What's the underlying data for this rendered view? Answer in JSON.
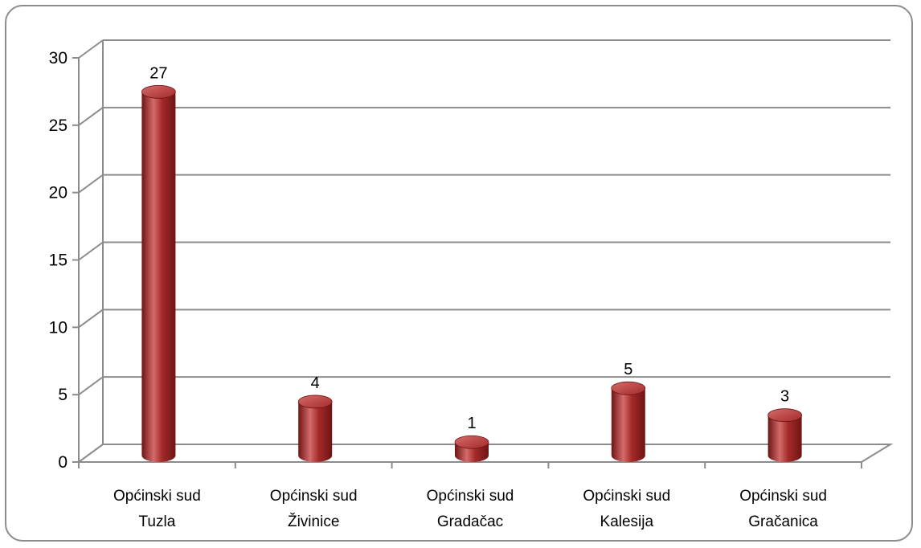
{
  "chart_data": {
    "type": "bar",
    "categories": [
      [
        "Općinski sud",
        "Tuzla"
      ],
      [
        "Općinski sud",
        "Živinice"
      ],
      [
        "Općinski sud",
        "Gradačac"
      ],
      [
        "Općinski sud",
        "Kalesija"
      ],
      [
        "Općinski sud",
        "Gračanica"
      ]
    ],
    "values": [
      27,
      4,
      1,
      5,
      3
    ],
    "data_labels": [
      "27",
      "4",
      "1",
      "5",
      "3"
    ],
    "yticks": [
      "0",
      "5",
      "10",
      "15",
      "20",
      "25",
      "30"
    ],
    "ylim": [
      0,
      30
    ],
    "title": "",
    "xlabel": "",
    "ylabel": "",
    "grid": true,
    "legend": "none",
    "style": "3d-cylinder",
    "bar_color": "#a52a2a",
    "bar_dark": "#6e1414",
    "bar_light": "#d46b6b"
  }
}
